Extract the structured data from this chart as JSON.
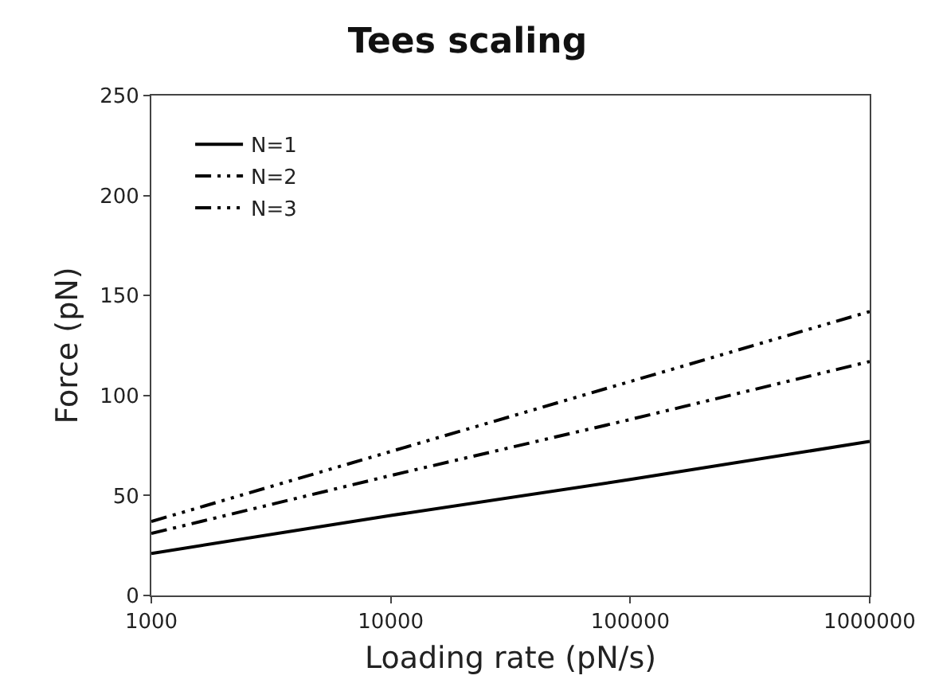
{
  "chart_data": {
    "type": "line",
    "title": "Tees scaling",
    "xlabel": "Loading rate (pN/s)",
    "ylabel": "Force (pN)",
    "log": "x",
    "x": [
      1000,
      10000,
      100000,
      1000000
    ],
    "series": [
      {
        "name": "N=1",
        "color": "#000000",
        "line_style": "solid",
        "values": [
          21,
          40,
          58,
          77
        ]
      },
      {
        "name": "N=2",
        "color": "#000000",
        "line_style": "dashdot",
        "values": [
          31,
          60,
          88,
          117
        ]
      },
      {
        "name": "N=3",
        "color": "#000000",
        "line_style": "longdashdot",
        "values": [
          37,
          72,
          107,
          142
        ]
      }
    ],
    "xlim": [
      1000,
      1000000
    ],
    "xticks": [
      1000,
      10000,
      100000,
      1000000
    ],
    "ylim": [
      0,
      250
    ],
    "yticks": [
      0,
      50,
      100,
      150,
      200,
      250
    ],
    "grid": false,
    "legend": "top left",
    "marker": "none"
  }
}
